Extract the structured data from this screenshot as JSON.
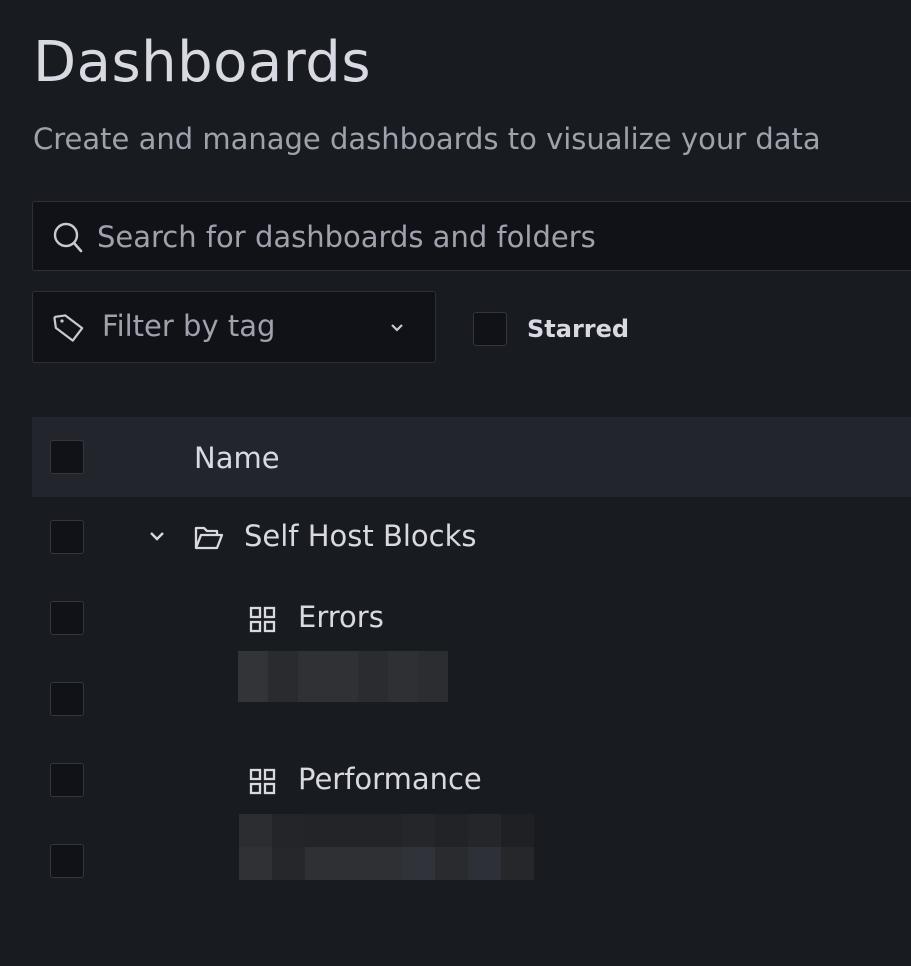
{
  "header": {
    "title": "Dashboards",
    "subtitle": "Create and manage dashboards to visualize your data"
  },
  "search": {
    "placeholder": "Search for dashboards and folders",
    "value": "",
    "icon": "search-icon"
  },
  "filters": {
    "tag_placeholder": "Filter by tag",
    "starred_label": "Starred",
    "starred_checked": false
  },
  "table": {
    "column_name": "Name",
    "rows": [
      {
        "type": "folder",
        "label": "Self Host Blocks",
        "expanded": true,
        "icon": "folder-open-icon"
      },
      {
        "type": "dashboard",
        "label": "Errors",
        "icon": "apps-icon"
      },
      {
        "type": "redacted",
        "label": ""
      },
      {
        "type": "dashboard",
        "label": "Performance",
        "icon": "apps-icon"
      },
      {
        "type": "redacted",
        "label": ""
      }
    ]
  },
  "colors": {
    "background": "#181b1f",
    "input": "#111217",
    "header_row": "#22252b",
    "text": "#ccccdc",
    "secondary_text": "#9fa1ad"
  }
}
